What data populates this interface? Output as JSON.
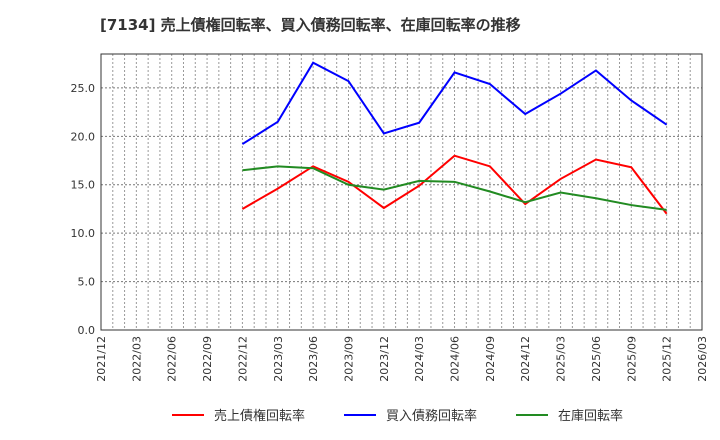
{
  "chart_data": {
    "type": "line",
    "title": "[7134]  売上債権回転率、買入債務回転率、在庫回転率の推移",
    "xlabel": "",
    "ylabel": "",
    "ylim": [
      0,
      28.5
    ],
    "yticks": [
      "0.0",
      "5.0",
      "10.0",
      "15.0",
      "20.0",
      "25.0"
    ],
    "xticks": [
      "2021/12",
      "2022/03",
      "2022/06",
      "2022/09",
      "2022/12",
      "2023/03",
      "2023/06",
      "2023/09",
      "2023/12",
      "2024/03",
      "2024/06",
      "2024/09",
      "2024/12",
      "2025/03",
      "2025/06",
      "2025/09",
      "2025/12",
      "2026/03"
    ],
    "x": [
      "2022/12",
      "2023/03",
      "2023/06",
      "2023/09",
      "2023/12",
      "2024/03",
      "2024/06",
      "2024/09",
      "2024/12",
      "2025/03",
      "2025/06",
      "2025/09",
      "2025/12"
    ],
    "grid": true,
    "legend_position": "bottom",
    "series": [
      {
        "name": "売上債権回転率",
        "color": "#ff0000",
        "values": [
          12.5,
          14.6,
          16.9,
          15.3,
          12.6,
          14.9,
          18.0,
          16.9,
          13.0,
          15.6,
          17.6,
          16.8,
          12.0
        ]
      },
      {
        "name": "買入債務回転率",
        "color": "#0000ff",
        "values": [
          19.2,
          21.5,
          27.6,
          25.7,
          20.3,
          21.4,
          26.6,
          25.4,
          22.3,
          24.4,
          26.8,
          23.7,
          21.2
        ]
      },
      {
        "name": "在庫回転率",
        "color": "#228b22",
        "values": [
          16.5,
          16.9,
          16.7,
          15.0,
          14.5,
          15.4,
          15.3,
          14.3,
          13.2,
          14.2,
          13.6,
          12.9,
          12.4
        ]
      }
    ]
  }
}
